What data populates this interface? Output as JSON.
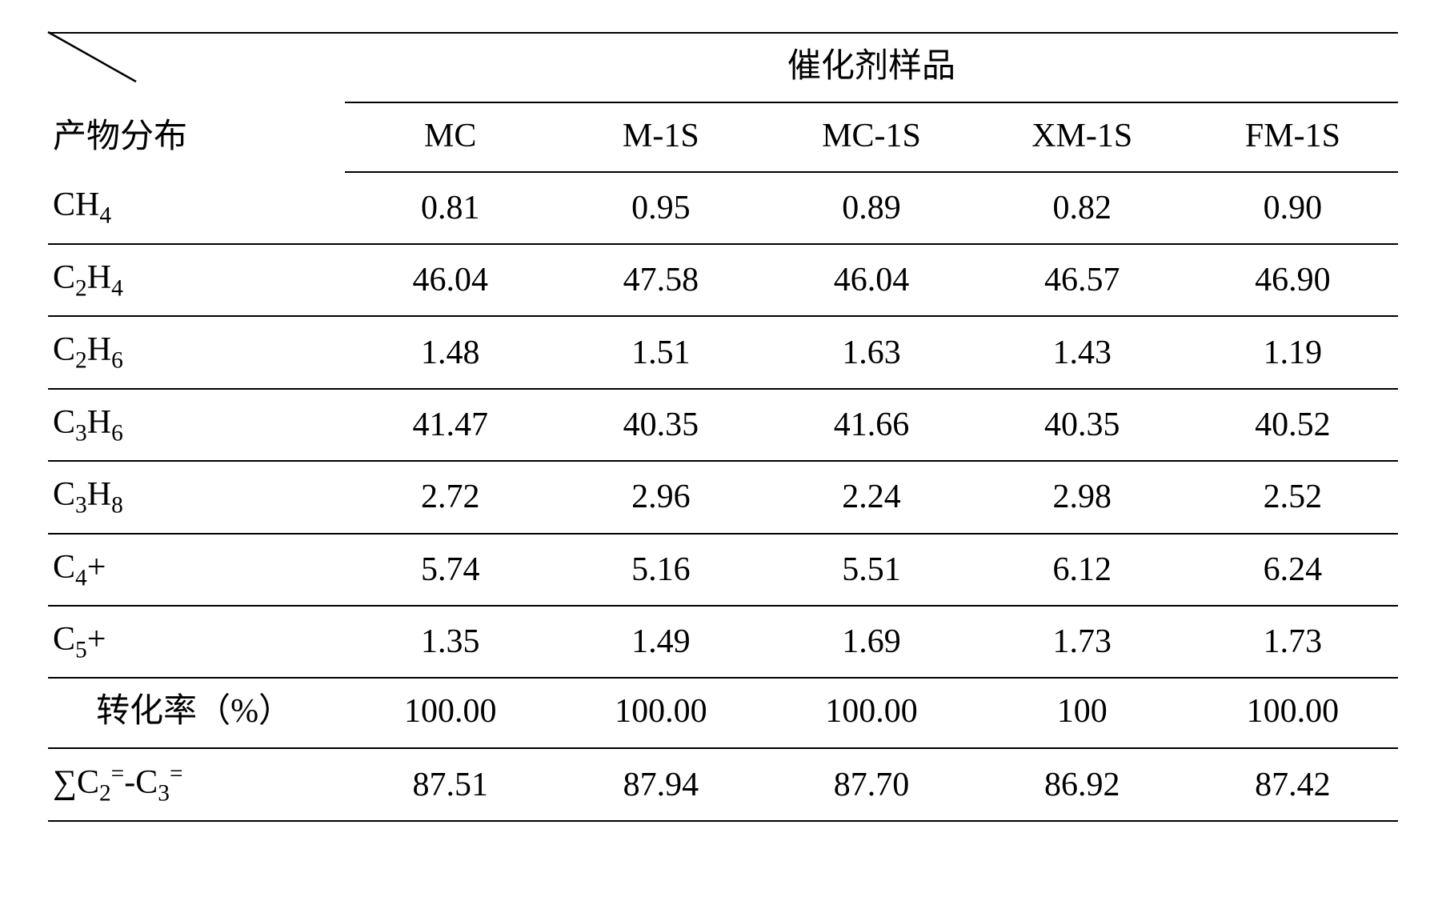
{
  "table": {
    "type": "table",
    "row_header_label": "产物分布",
    "span_header": "催化剂样品",
    "columns": [
      "MC",
      "M-1S",
      "MC-1S",
      "XM-1S",
      "FM-1S"
    ],
    "rows": [
      {
        "label_html": "CH<sub>4</sub>",
        "values": [
          "0.81",
          "0.95",
          "0.89",
          "0.82",
          "0.90"
        ]
      },
      {
        "label_html": "C<sub>2</sub>H<sub>4</sub>",
        "values": [
          "46.04",
          "47.58",
          "46.04",
          "46.57",
          "46.90"
        ]
      },
      {
        "label_html": "C<sub>2</sub>H<sub>6</sub>",
        "values": [
          "1.48",
          "1.51",
          "1.63",
          "1.43",
          "1.19"
        ]
      },
      {
        "label_html": "C<sub>3</sub>H<sub>6</sub>",
        "values": [
          "41.47",
          "40.35",
          "41.66",
          "40.35",
          "40.52"
        ]
      },
      {
        "label_html": "C<sub>3</sub>H<sub>8</sub>",
        "values": [
          "2.72",
          "2.96",
          "2.24",
          "2.98",
          "2.52"
        ]
      },
      {
        "label_html": "C<sub>4</sub>+",
        "values": [
          "5.74",
          "5.16",
          "5.51",
          "6.12",
          "6.24"
        ]
      },
      {
        "label_html": "C<sub>5</sub>+",
        "values": [
          "1.35",
          "1.49",
          "1.69",
          "1.73",
          "1.73"
        ]
      }
    ],
    "conversion_row": {
      "label": "转化率（%）",
      "values": [
        "100.00",
        "100.00",
        "100.00",
        "100",
        "100.00"
      ]
    },
    "sum_row": {
      "label_html": "∑C<sub>2</sub><sup>=</sup>-C<sub>3</sub><sup>=</sup>",
      "values": [
        "87.51",
        "87.94",
        "87.70",
        "86.92",
        "87.42"
      ]
    },
    "colors": {
      "text": "#000000",
      "background": "#ffffff",
      "rule": "#000000"
    },
    "font_size_pt": 32,
    "col_widths_pct": [
      22,
      15.6,
      15.6,
      15.6,
      15.6,
      15.6
    ]
  }
}
